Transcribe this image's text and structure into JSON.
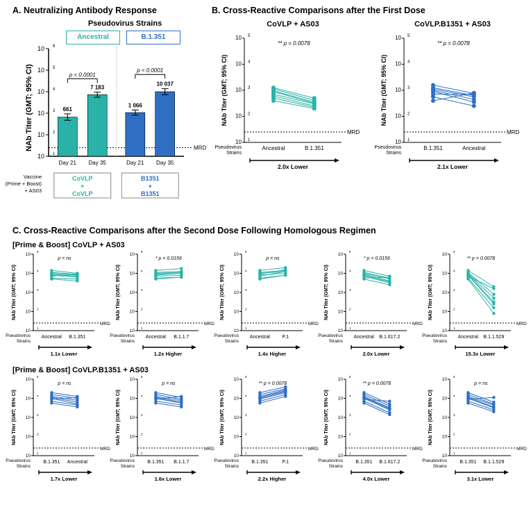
{
  "colors": {
    "teal": "#2ab2a8",
    "blue": "#2f6fc4",
    "axis": "#000000",
    "grid": "#e0e0e0",
    "mrd": "#000000",
    "box_border_teal": "#2ab2a8",
    "box_border_blue": "#2f6fc4"
  },
  "panelA": {
    "title": "A. Neutralizing Antibody Response",
    "strains_header": "Pseudovirus Strains",
    "strain1": "Ancestral",
    "strain2": "B.1.351",
    "ylabel": "NAb Titer (GMT; 95% CI)",
    "ylim_exp": [
      1,
      6
    ],
    "mrd_label": "MRD",
    "mrd_exp": 1.4,
    "p1": "p < 0.0001",
    "p2": "p < 0.0001",
    "bars": [
      {
        "label": "Day 21",
        "val_text": "661",
        "val_exp": 2.82,
        "err_up": 0.15,
        "err_dn": 0.15,
        "color": "teal"
      },
      {
        "label": "Day 35",
        "val_text": "7 183",
        "val_exp": 3.86,
        "err_up": 0.12,
        "err_dn": 0.12,
        "color": "teal"
      },
      {
        "label": "Day 21",
        "val_text": "1 066",
        "val_exp": 3.03,
        "err_up": 0.12,
        "err_dn": 0.12,
        "color": "blue"
      },
      {
        "label": "Day 35",
        "val_text": "10 037",
        "val_exp": 4.0,
        "err_up": 0.14,
        "err_dn": 0.14,
        "color": "blue"
      }
    ],
    "vaccine_label": "Vaccine\n(Prime + Boost)\n+ AS03",
    "box1": "CoVLP\n+\nCoVLP",
    "box2": "B1351\n+\nB1351"
  },
  "panelB": {
    "title": "B. Cross-Reactive Comparisons after the First Dose",
    "ylabel": "NAb Titer (GMT; 95% CI)",
    "ylim_exp": [
      1,
      5
    ],
    "mrd_exp": 1.4,
    "mrd_label": "MRD",
    "pstrain_label": "Pseudovirus\nStrains",
    "charts": [
      {
        "header": "CoVLP + AS03",
        "pval": "** p = 0.0078",
        "color": "teal",
        "cat1": "Ancestral",
        "cat2": "B.1.351",
        "arrow": "2.0x Lower",
        "pairs": [
          [
            3.1,
            2.7
          ],
          [
            3.05,
            2.62
          ],
          [
            2.98,
            2.55
          ],
          [
            2.95,
            2.5
          ],
          [
            2.85,
            2.48
          ],
          [
            2.78,
            2.4
          ],
          [
            2.7,
            2.35
          ],
          [
            2.6,
            2.3
          ]
        ]
      },
      {
        "header": "CoVLP.B1351 + AS03",
        "pval": "** p = 0.0078",
        "color": "blue",
        "cat1": "B.1.351",
        "cat2": "Ancestral",
        "arrow": "2.1x Lower",
        "pairs": [
          [
            3.2,
            2.88
          ],
          [
            3.1,
            2.8
          ],
          [
            3.05,
            2.75
          ],
          [
            3.0,
            2.65
          ],
          [
            2.95,
            2.55
          ],
          [
            2.85,
            2.85
          ],
          [
            2.75,
            2.4
          ],
          [
            2.6,
            2.9
          ]
        ]
      }
    ]
  },
  "panelC": {
    "title": "C. Cross-Reactive Comparisons after the Second Dose Following Homologous Regimen",
    "ylabel": "NAb Titer (GMT; 95% CI)",
    "ylim_exp": [
      1,
      5
    ],
    "mrd_exp": 1.4,
    "mrd_label": "MRD",
    "pstrain_label": "Pseudovirus\nStrains",
    "row1_header": "[Prime & Boost] CoVLP + AS03",
    "row2_header": "[Prime & Boost] CoVLP.B1351 + AS03",
    "row1": [
      {
        "pval": "p = ns",
        "stars": "",
        "color": "teal",
        "cat1": "Ancestral",
        "cat2": "B.1.351",
        "arrow": "1.1x Lower",
        "pairs": [
          [
            4.15,
            4.0
          ],
          [
            4.05,
            3.95
          ],
          [
            4.0,
            3.9
          ],
          [
            3.95,
            3.85
          ],
          [
            3.9,
            3.8
          ],
          [
            3.85,
            3.95
          ],
          [
            3.75,
            3.7
          ],
          [
            3.7,
            3.6
          ]
        ]
      },
      {
        "pval": "p = 0.0156",
        "stars": "*",
        "color": "teal",
        "cat1": "Ancestral",
        "cat2": "B.1.1.7",
        "arrow": "1.2x Higher",
        "pairs": [
          [
            4.15,
            4.25
          ],
          [
            4.05,
            4.1
          ],
          [
            4.0,
            4.05
          ],
          [
            3.95,
            4.05
          ],
          [
            3.9,
            4.0
          ],
          [
            3.85,
            3.9
          ],
          [
            3.75,
            3.8
          ],
          [
            3.7,
            3.8
          ]
        ]
      },
      {
        "pval": "p = ns",
        "stars": "",
        "color": "teal",
        "cat1": "Ancestral",
        "cat2": "P.1",
        "arrow": "1.4x Higher",
        "pairs": [
          [
            4.15,
            4.3
          ],
          [
            4.05,
            4.15
          ],
          [
            4.0,
            4.1
          ],
          [
            3.95,
            4.2
          ],
          [
            3.9,
            4.0
          ],
          [
            3.85,
            4.1
          ],
          [
            3.75,
            3.9
          ],
          [
            3.7,
            3.9
          ]
        ]
      },
      {
        "pval": "p = 0.0156",
        "stars": "*",
        "color": "teal",
        "cat1": "Ancestral",
        "cat2": "B.1.617.2",
        "arrow": "2.0x Lower",
        "pairs": [
          [
            4.15,
            3.85
          ],
          [
            4.05,
            3.75
          ],
          [
            4.0,
            3.7
          ],
          [
            3.95,
            3.6
          ],
          [
            3.9,
            3.55
          ],
          [
            3.85,
            3.5
          ],
          [
            3.75,
            3.8
          ],
          [
            3.7,
            3.4
          ]
        ]
      },
      {
        "pval": "p = 0.0078",
        "stars": "**",
        "color": "teal",
        "cat1": "Ancestral",
        "cat2": "B.1.1.529",
        "arrow": "15.3x Lower",
        "pairs": [
          [
            4.15,
            3.3
          ],
          [
            4.05,
            2.9
          ],
          [
            4.0,
            2.7
          ],
          [
            3.95,
            2.5
          ],
          [
            3.9,
            2.4
          ],
          [
            3.85,
            3.2
          ],
          [
            3.75,
            2.2
          ],
          [
            3.7,
            1.9
          ]
        ]
      }
    ],
    "row2": [
      {
        "pval": "p = ns",
        "stars": "",
        "color": "blue",
        "cat1": "B.1.351",
        "cat2": "Ancestral",
        "arrow": "1.7x Lower",
        "pairs": [
          [
            4.3,
            4.1
          ],
          [
            4.2,
            4.0
          ],
          [
            4.1,
            3.9
          ],
          [
            4.05,
            3.8
          ],
          [
            4.0,
            3.7
          ],
          [
            3.95,
            4.05
          ],
          [
            3.85,
            3.65
          ],
          [
            3.75,
            3.55
          ]
        ]
      },
      {
        "pval": "p = ns",
        "stars": "",
        "color": "blue",
        "cat1": "B.1.351",
        "cat2": "B.1.1.7",
        "arrow": "1.6x Lower",
        "pairs": [
          [
            4.3,
            4.05
          ],
          [
            4.2,
            3.95
          ],
          [
            4.1,
            3.88
          ],
          [
            4.05,
            3.8
          ],
          [
            4.0,
            3.75
          ],
          [
            3.95,
            4.1
          ],
          [
            3.85,
            3.65
          ],
          [
            3.75,
            3.55
          ]
        ]
      },
      {
        "pval": "p = 0.0078",
        "stars": "**",
        "color": "blue",
        "cat1": "B.1.351",
        "cat2": "P.1",
        "arrow": "2.2x Higher",
        "pairs": [
          [
            4.3,
            4.6
          ],
          [
            4.2,
            4.5
          ],
          [
            4.1,
            4.45
          ],
          [
            4.05,
            4.4
          ],
          [
            4.0,
            4.35
          ],
          [
            3.95,
            4.3
          ],
          [
            3.85,
            4.2
          ],
          [
            3.75,
            4.1
          ]
        ]
      },
      {
        "pval": "p = 0.0078",
        "stars": "**",
        "color": "blue",
        "cat1": "B.1.351",
        "cat2": "B.1.617.2",
        "arrow": "4.0x Lower",
        "pairs": [
          [
            4.3,
            3.7
          ],
          [
            4.2,
            3.6
          ],
          [
            4.1,
            3.5
          ],
          [
            4.05,
            3.45
          ],
          [
            4.0,
            3.4
          ],
          [
            3.95,
            3.85
          ],
          [
            3.85,
            3.25
          ],
          [
            3.75,
            3.15
          ]
        ]
      },
      {
        "pval": "p = ns",
        "stars": "",
        "color": "blue",
        "cat1": "B.1.351",
        "cat2": "B.1.1.529",
        "arrow": "3.1x Lower",
        "pairs": [
          [
            4.3,
            3.8
          ],
          [
            4.2,
            3.7
          ],
          [
            4.1,
            3.65
          ],
          [
            4.05,
            3.55
          ],
          [
            4.0,
            3.5
          ],
          [
            3.95,
            4.05
          ],
          [
            3.85,
            3.4
          ],
          [
            3.75,
            3.3
          ]
        ]
      }
    ]
  }
}
